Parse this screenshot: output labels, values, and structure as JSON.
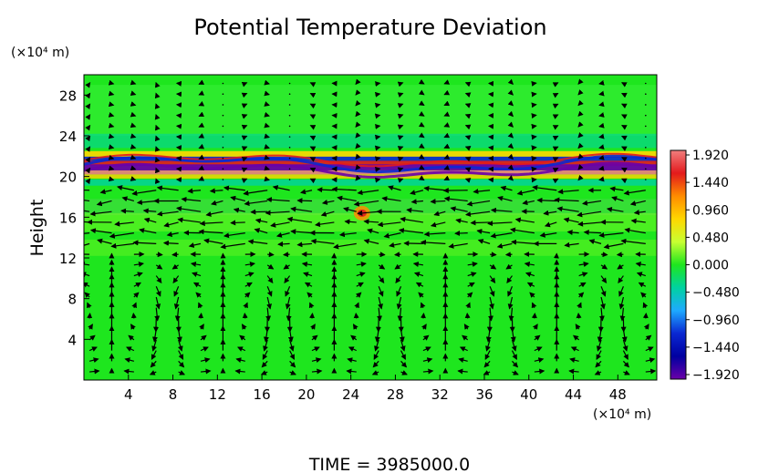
{
  "chart_data": {
    "type": "heatmap",
    "title": "Potential Temperature Deviation",
    "ylabel": "Height",
    "y_unit_label": "(×10⁴ m)",
    "x_unit_label": "(×10⁴ m)",
    "footer": "TIME = 3985000.0",
    "x_ticks": [
      "4",
      "8",
      "12",
      "16",
      "20",
      "24",
      "28",
      "32",
      "36",
      "40",
      "44",
      "48"
    ],
    "y_ticks": [
      "4",
      "8",
      "12",
      "16",
      "20",
      "24",
      "28"
    ],
    "xlim": [
      0,
      51.5
    ],
    "ylim": [
      0,
      30
    ],
    "colorbar": {
      "ticks": [
        "1.920",
        "1.440",
        "0.960",
        "0.480",
        "0.000",
        "−0.480",
        "−0.960",
        "−1.440",
        "−1.920"
      ],
      "values": [
        1.92,
        1.44,
        0.96,
        0.48,
        0.0,
        -0.48,
        -0.96,
        -1.44,
        -1.92
      ],
      "colors": [
        "#f07e7e",
        "#e31a1c",
        "#ff8c00",
        "#ffd700",
        "#c8ff32",
        "#1ee61e",
        "#00d2a0",
        "#1eaaff",
        "#0a28d2",
        "#0000a0",
        "#6a00a8"
      ]
    },
    "background_color": "#1ee61e",
    "vector_field": "wind",
    "grid": false
  }
}
